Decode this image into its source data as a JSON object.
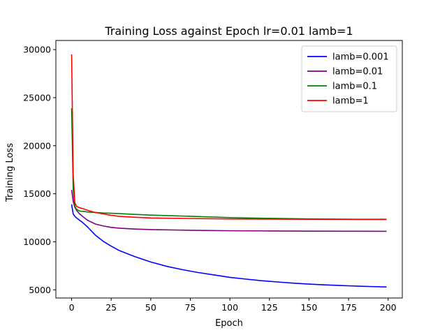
{
  "chart_data": {
    "type": "line",
    "title": "Training Loss against Epoch lr=0.01 lamb=1",
    "xlabel": "Epoch",
    "ylabel": "Training Loss",
    "xlim": [
      -9.95,
      208.95
    ],
    "ylim": [
      4150,
      30950
    ],
    "xticks": [
      0,
      25,
      50,
      75,
      100,
      125,
      150,
      175,
      200
    ],
    "yticks": [
      5000,
      10000,
      15000,
      20000,
      25000,
      30000
    ],
    "legend_position": "upper right",
    "grid": false,
    "series": [
      {
        "name": "lamb=0.001",
        "color": "#0000ff",
        "x": [
          0,
          1,
          2,
          3,
          5,
          7,
          10,
          15,
          20,
          25,
          30,
          40,
          50,
          60,
          70,
          80,
          90,
          100,
          110,
          120,
          130,
          140,
          150,
          160,
          170,
          180,
          190,
          199
        ],
        "y": [
          13900,
          12900,
          12650,
          12500,
          12250,
          12000,
          11550,
          10700,
          10050,
          9550,
          9100,
          8450,
          7900,
          7450,
          7100,
          6800,
          6550,
          6300,
          6120,
          5950,
          5820,
          5700,
          5600,
          5520,
          5450,
          5390,
          5340,
          5300
        ]
      },
      {
        "name": "lamb=0.01",
        "color": "#800080",
        "x": [
          0,
          1,
          2,
          3,
          5,
          8,
          10,
          15,
          20,
          25,
          30,
          40,
          50,
          75,
          100,
          125,
          150,
          175,
          199
        ],
        "y": [
          15400,
          14200,
          13600,
          13300,
          12900,
          12500,
          12250,
          11850,
          11650,
          11500,
          11420,
          11330,
          11270,
          11200,
          11150,
          11130,
          11110,
          11100,
          11090
        ]
      },
      {
        "name": "lamb=0.1",
        "color": "#008000",
        "x": [
          0,
          1,
          2,
          3,
          5,
          8,
          10,
          15,
          20,
          25,
          30,
          40,
          50,
          75,
          100,
          125,
          150,
          175,
          199
        ],
        "y": [
          23900,
          15500,
          13700,
          13400,
          13200,
          13150,
          13100,
          13050,
          13000,
          12970,
          12930,
          12850,
          12780,
          12650,
          12520,
          12440,
          12380,
          12350,
          12340
        ]
      },
      {
        "name": "lamb=1",
        "color": "#ff0000",
        "x": [
          0,
          1,
          2,
          3,
          5,
          8,
          10,
          15,
          20,
          25,
          30,
          40,
          50,
          75,
          100,
          125,
          150,
          175,
          199
        ],
        "y": [
          29500,
          17000,
          14100,
          13700,
          13550,
          13400,
          13280,
          13050,
          12900,
          12750,
          12650,
          12550,
          12480,
          12420,
          12380,
          12360,
          12340,
          12330,
          12320
        ]
      }
    ]
  }
}
